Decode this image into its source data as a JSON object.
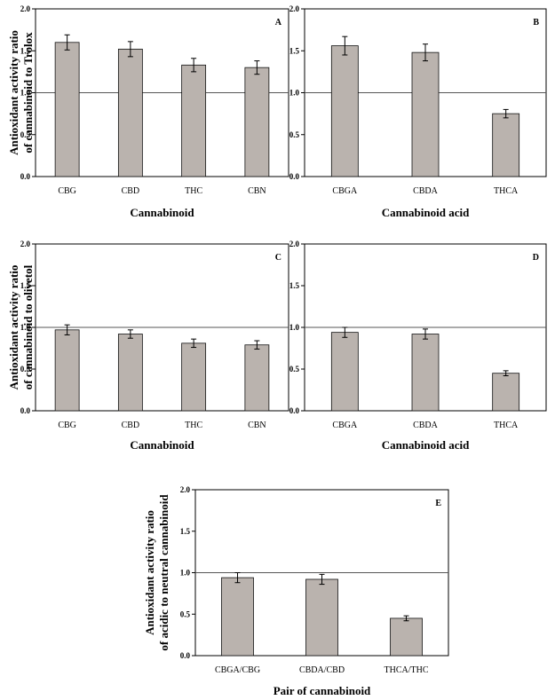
{
  "chart_data": [
    {
      "type": "bar",
      "panel": "A",
      "categories": [
        "CBG",
        "CBD",
        "THC",
        "CBN"
      ],
      "values": [
        1.6,
        1.52,
        1.33,
        1.3
      ],
      "errors": [
        0.09,
        0.09,
        0.08,
        0.08
      ],
      "reference_line": 1.0,
      "xlabel": "Cannabinoid",
      "ylabel": [
        "Antioxidant activity ratio",
        "of cannabinoid to Trolox"
      ],
      "ylim": [
        0,
        2
      ],
      "yticks": [
        "0.0",
        "0.5",
        "1.0",
        "1.5",
        "2.0"
      ],
      "bar_color": "#bab3ae"
    },
    {
      "type": "bar",
      "panel": "B",
      "categories": [
        "CBGA",
        "CBDA",
        "THCA"
      ],
      "values": [
        1.56,
        1.48,
        0.75
      ],
      "errors": [
        0.11,
        0.1,
        0.05
      ],
      "reference_line": 1.0,
      "xlabel": "Cannabinoid acid",
      "ylabel": [],
      "ylim": [
        0,
        2
      ],
      "yticks": [
        "0.0",
        "0.5",
        "1.0",
        "1.5",
        "2.0"
      ],
      "bar_color": "#bab3ae"
    },
    {
      "type": "bar",
      "panel": "C",
      "categories": [
        "CBG",
        "CBD",
        "THC",
        "CBN"
      ],
      "values": [
        0.97,
        0.92,
        0.81,
        0.79
      ],
      "errors": [
        0.06,
        0.05,
        0.05,
        0.05
      ],
      "reference_line": 1.0,
      "xlabel": "Cannabinoid",
      "ylabel": [
        "Antioxidant activity ratio",
        "of cannabinoid to olivetol"
      ],
      "ylim": [
        0,
        2
      ],
      "yticks": [
        "0.0",
        "0.5",
        "1.0",
        "1.5",
        "2.0"
      ],
      "bar_color": "#bab3ae"
    },
    {
      "type": "bar",
      "panel": "D",
      "categories": [
        "CBGA",
        "CBDA",
        "THCA"
      ],
      "values": [
        0.94,
        0.92,
        0.45
      ],
      "errors": [
        0.06,
        0.06,
        0.03
      ],
      "reference_line": 1.0,
      "xlabel": "Cannabinoid acid",
      "ylabel": [],
      "ylim": [
        0,
        2
      ],
      "yticks": [
        "0.0",
        "0.5",
        "1.0",
        "1.5",
        "2.0"
      ],
      "bar_color": "#bab3ae"
    },
    {
      "type": "bar",
      "panel": "E",
      "categories": [
        "CBGA/CBG",
        "CBDA/CBD",
        "THCA/THC"
      ],
      "values": [
        0.94,
        0.92,
        0.45
      ],
      "errors": [
        0.06,
        0.06,
        0.03
      ],
      "reference_line": 1.0,
      "xlabel": "Pair of cannabinoid",
      "ylabel": [
        "Antioxidant activity ratio",
        "of acidic to neutral cannabinoid"
      ],
      "ylim": [
        0,
        2
      ],
      "yticks": [
        "0.0",
        "0.5",
        "1.0",
        "1.5",
        "2.0"
      ],
      "bar_color": "#bab3ae"
    }
  ]
}
